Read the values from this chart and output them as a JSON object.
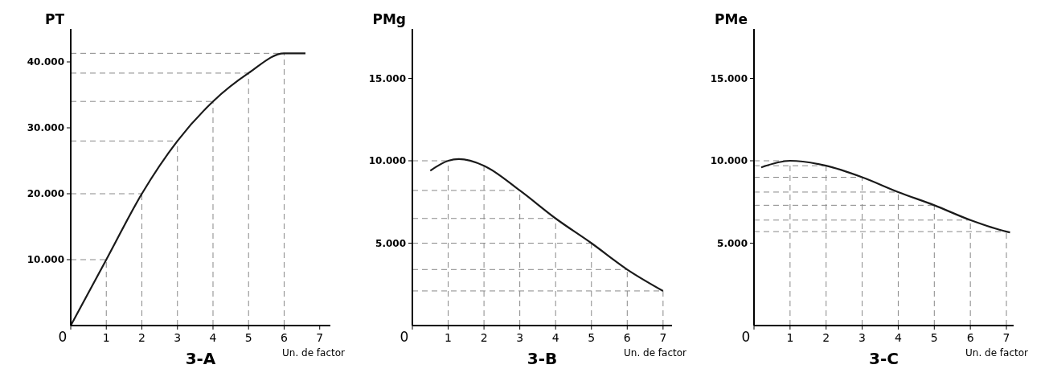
{
  "chart_data": [
    {
      "type": "line",
      "title": "3-A",
      "xlabel": "Un. de factor",
      "ylabel": "PT",
      "color": "#1a1a1a",
      "x": [
        0,
        1,
        2,
        3,
        4,
        5,
        6,
        6.6
      ],
      "values": [
        0,
        10000,
        20000,
        28000,
        34000,
        38300,
        41300,
        41300
      ],
      "xlim": [
        0,
        7.3
      ],
      "ylim": [
        0,
        45000
      ],
      "xticks": [
        0,
        1,
        2,
        3,
        4,
        5,
        6,
        7
      ],
      "yticks": [
        {
          "value": 10000,
          "label": "10.000"
        },
        {
          "value": 20000,
          "label": "20.000"
        },
        {
          "value": 30000,
          "label": "30.000"
        },
        {
          "value": 40000,
          "label": "40.000"
        }
      ],
      "ref_lines": [
        {
          "axis": "x",
          "value": 1,
          "color": "#888888",
          "line_style": "dashed"
        },
        {
          "axis": "x",
          "value": 2,
          "color": "#888888",
          "line_style": "dashed"
        },
        {
          "axis": "x",
          "value": 3,
          "color": "#888888",
          "line_style": "dashed"
        },
        {
          "axis": "x",
          "value": 4,
          "color": "#888888",
          "line_style": "dashed"
        },
        {
          "axis": "x",
          "value": 5,
          "color": "#888888",
          "line_style": "dashed"
        },
        {
          "axis": "x",
          "value": 6,
          "color": "#888888",
          "line_style": "dashed"
        },
        {
          "axis": "y",
          "value": 10000,
          "color": "#888888",
          "line_style": "dashed"
        },
        {
          "axis": "y",
          "value": 20000,
          "color": "#888888",
          "line_style": "dashed"
        },
        {
          "axis": "y",
          "value": 28000,
          "color": "#888888",
          "line_style": "dashed"
        },
        {
          "axis": "y",
          "value": 34000,
          "color": "#888888",
          "line_style": "dashed"
        },
        {
          "axis": "y",
          "value": 38300,
          "color": "#888888",
          "line_style": "dashed"
        },
        {
          "axis": "y",
          "value": 41300,
          "color": "#888888",
          "line_style": "dashed"
        }
      ]
    },
    {
      "type": "line",
      "title": "3-B",
      "xlabel": "Un. de factor",
      "ylabel": "PMg",
      "color": "#1a1a1a",
      "x": [
        0.5,
        1,
        1.3,
        2,
        3,
        4,
        5,
        6,
        7
      ],
      "values": [
        9400,
        10000,
        10100,
        9700,
        8200,
        6500,
        5000,
        3400,
        2100
      ],
      "xlim": [
        0,
        7.25
      ],
      "ylim": [
        0,
        18000
      ],
      "xticks": [
        0,
        1,
        2,
        3,
        4,
        5,
        6,
        7
      ],
      "yticks": [
        {
          "value": 5000,
          "label": "5.000"
        },
        {
          "value": 10000,
          "label": "10.000"
        },
        {
          "value": 15000,
          "label": "15.000"
        }
      ],
      "ref_lines": [
        {
          "axis": "x",
          "value": 1,
          "color": "#888888",
          "line_style": "dashed"
        },
        {
          "axis": "x",
          "value": 2,
          "color": "#888888",
          "line_style": "dashed"
        },
        {
          "axis": "x",
          "value": 3,
          "color": "#888888",
          "line_style": "dashed"
        },
        {
          "axis": "x",
          "value": 4,
          "color": "#888888",
          "line_style": "dashed"
        },
        {
          "axis": "x",
          "value": 5,
          "color": "#888888",
          "line_style": "dashed"
        },
        {
          "axis": "x",
          "value": 6,
          "color": "#888888",
          "line_style": "dashed"
        },
        {
          "axis": "x",
          "value": 7,
          "color": "#888888",
          "line_style": "dashed"
        },
        {
          "axis": "y",
          "value": 10000,
          "color": "#888888",
          "line_style": "dashed"
        },
        {
          "axis": "y",
          "value": 8200,
          "color": "#888888",
          "line_style": "dashed"
        },
        {
          "axis": "y",
          "value": 6500,
          "color": "#888888",
          "line_style": "dashed"
        },
        {
          "axis": "y",
          "value": 5000,
          "color": "#888888",
          "line_style": "dashed"
        },
        {
          "axis": "y",
          "value": 3400,
          "color": "#888888",
          "line_style": "dashed"
        },
        {
          "axis": "y",
          "value": 2100,
          "color": "#888888",
          "line_style": "dashed"
        }
      ]
    },
    {
      "type": "line",
      "title": "3-C",
      "xlabel": "Un. de factor",
      "ylabel": "PMe",
      "color": "#1a1a1a",
      "x": [
        0.2,
        1,
        2,
        3,
        4,
        5,
        6,
        7,
        7.1
      ],
      "values": [
        9600,
        10000,
        9700,
        9000,
        8100,
        7300,
        6400,
        5700,
        5650
      ],
      "xlim": [
        0,
        7.2
      ],
      "ylim": [
        0,
        18000
      ],
      "xticks": [
        0,
        1,
        2,
        3,
        4,
        5,
        6,
        7
      ],
      "yticks": [
        {
          "value": 5000,
          "label": "5.000"
        },
        {
          "value": 10000,
          "label": "10.000"
        },
        {
          "value": 15000,
          "label": "15.000"
        }
      ],
      "ref_lines": [
        {
          "axis": "x",
          "value": 1,
          "color": "#888888",
          "line_style": "dashed"
        },
        {
          "axis": "x",
          "value": 2,
          "color": "#888888",
          "line_style": "dashed"
        },
        {
          "axis": "x",
          "value": 3,
          "color": "#888888",
          "line_style": "dashed"
        },
        {
          "axis": "x",
          "value": 4,
          "color": "#888888",
          "line_style": "dashed"
        },
        {
          "axis": "x",
          "value": 5,
          "color": "#888888",
          "line_style": "dashed"
        },
        {
          "axis": "x",
          "value": 6,
          "color": "#888888",
          "line_style": "dashed"
        },
        {
          "axis": "x",
          "value": 7,
          "color": "#888888",
          "line_style": "dashed"
        },
        {
          "axis": "y",
          "value": 10000,
          "color": "#888888",
          "line_style": "dashed"
        },
        {
          "axis": "y",
          "value": 9700,
          "color": "#888888",
          "line_style": "dashed"
        },
        {
          "axis": "y",
          "value": 9000,
          "color": "#888888",
          "line_style": "dashed"
        },
        {
          "axis": "y",
          "value": 8100,
          "color": "#888888",
          "line_style": "dashed"
        },
        {
          "axis": "y",
          "value": 7300,
          "color": "#888888",
          "line_style": "dashed"
        },
        {
          "axis": "y",
          "value": 6400,
          "color": "#888888",
          "line_style": "dashed"
        },
        {
          "axis": "y",
          "value": 5700,
          "color": "#888888",
          "line_style": "dashed"
        }
      ]
    }
  ]
}
